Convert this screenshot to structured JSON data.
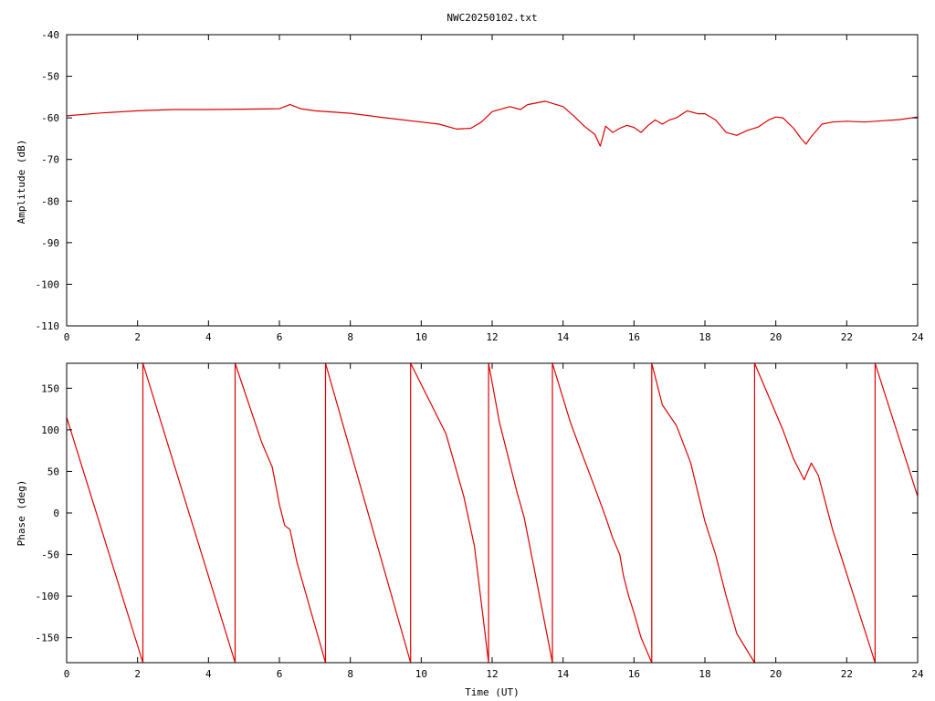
{
  "title": "NWC20250102.txt",
  "chart_data": [
    {
      "type": "line",
      "ylabel": "Amplitude (dB)",
      "xlabel": "",
      "xlim": [
        0,
        24
      ],
      "ylim": [
        -110,
        -40
      ],
      "xticks": [
        0,
        2,
        4,
        6,
        8,
        10,
        12,
        14,
        16,
        18,
        20,
        22,
        24
      ],
      "yticks": [
        -40,
        -50,
        -60,
        -70,
        -80,
        -90,
        -100,
        -110
      ],
      "grid": false,
      "color": "#dd0000",
      "series": [
        {
          "x": [
            0,
            1,
            2,
            3,
            4,
            5,
            6,
            6.3,
            6.6,
            7,
            8,
            9,
            10,
            10.5,
            11,
            11.4,
            11.7,
            12,
            12.5,
            12.8,
            13,
            13.5,
            14,
            14.3,
            14.6,
            14.9,
            15.05,
            15.2,
            15.4,
            15.6,
            15.8,
            16,
            16.2,
            16.4,
            16.6,
            16.8,
            17,
            17.2,
            17.5,
            17.8,
            18,
            18.3,
            18.6,
            18.9,
            19.2,
            19.5,
            19.8,
            20,
            20.2,
            20.5,
            20.7,
            20.85,
            21,
            21.3,
            21.6,
            22,
            22.5,
            23,
            23.5,
            24
          ],
          "values": [
            -59.5,
            -58.8,
            -58.3,
            -58.0,
            -58.0,
            -57.9,
            -57.8,
            -56.8,
            -57.8,
            -58.3,
            -58.9,
            -60.0,
            -61.0,
            -61.5,
            -62.7,
            -62.5,
            -61.0,
            -58.5,
            -57.3,
            -58.0,
            -56.8,
            -56.0,
            -57.3,
            -59.5,
            -62.0,
            -64.0,
            -66.8,
            -62.0,
            -63.5,
            -62.5,
            -61.8,
            -62.3,
            -63.5,
            -61.8,
            -60.5,
            -61.5,
            -60.5,
            -60.0,
            -58.3,
            -59.0,
            -59.0,
            -60.5,
            -63.5,
            -64.2,
            -63.0,
            -62.2,
            -60.5,
            -59.8,
            -60.0,
            -62.5,
            -64.8,
            -66.3,
            -64.5,
            -61.5,
            -61.0,
            -60.8,
            -61.0,
            -60.7,
            -60.4,
            -59.8
          ]
        }
      ]
    },
    {
      "type": "line",
      "ylabel": "Phase (deg)",
      "xlabel": "Time (UT)",
      "xlim": [
        0,
        24
      ],
      "ylim": [
        -180,
        180
      ],
      "xticks": [
        0,
        2,
        4,
        6,
        8,
        10,
        12,
        14,
        16,
        18,
        20,
        22,
        24
      ],
      "yticks": [
        150,
        100,
        50,
        0,
        -50,
        -100,
        -150
      ],
      "grid": false,
      "color": "#dd0000",
      "series": [
        {
          "x": [
            0,
            2.15,
            2.15,
            4.75,
            4.75,
            5.5,
            5.8,
            6.0,
            6.15,
            6.3,
            6.5,
            7.3,
            7.3,
            9.7,
            9.7,
            10.7,
            11.2,
            11.5,
            11.9,
            11.9,
            12.2,
            12.7,
            12.9,
            13.2,
            13.7,
            13.7,
            14.2,
            14.5,
            14.9,
            15.2,
            15.4,
            15.6,
            15.7,
            15.85,
            16.0,
            16.2,
            16.5,
            16.5,
            16.8,
            17.2,
            17.6,
            17.8,
            18.0,
            18.3,
            18.6,
            18.9,
            19.4,
            19.4,
            20.2,
            20.5,
            20.8,
            21.0,
            21.2,
            21.6,
            22.8,
            22.8,
            24
          ],
          "values": [
            115,
            -180,
            180,
            -180,
            180,
            85,
            55,
            10,
            -15,
            -20,
            -60,
            -180,
            180,
            -180,
            180,
            95,
            20,
            -40,
            -180,
            180,
            110,
            25,
            -5,
            -70,
            -180,
            180,
            110,
            75,
            30,
            -5,
            -30,
            -50,
            -75,
            -100,
            -120,
            -150,
            -180,
            180,
            130,
            105,
            60,
            25,
            -10,
            -50,
            -100,
            -145,
            -180,
            180,
            100,
            65,
            40,
            60,
            45,
            -20,
            -180,
            180,
            20
          ]
        }
      ]
    }
  ]
}
